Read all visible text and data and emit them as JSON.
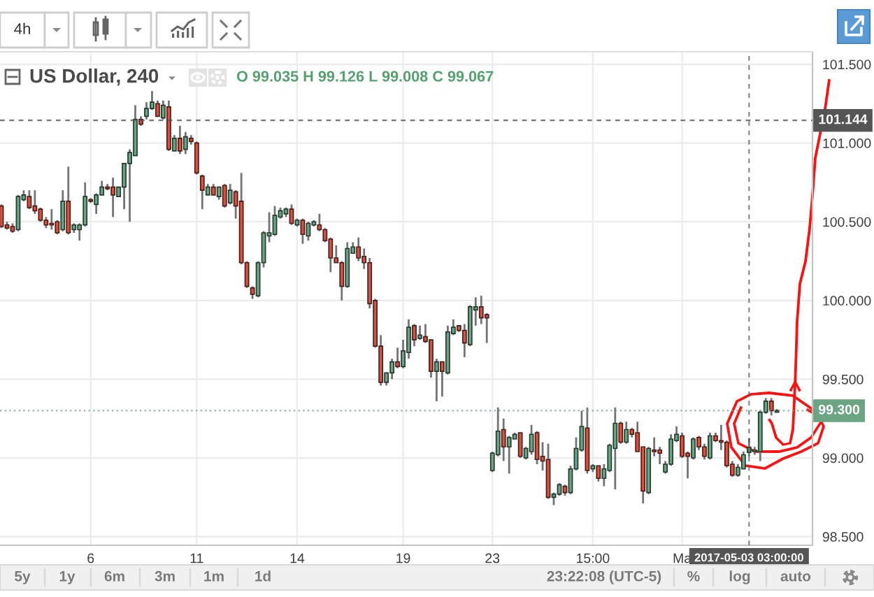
{
  "chart_data": {
    "type": "candlestick",
    "title": "US Dollar, 240",
    "subtitle": "O 99.035 H 99.126 L 99.008 C 99.067",
    "categories": [
      null,
      null,
      null,
      null,
      null,
      null,
      null,
      null,
      null,
      null,
      null,
      null,
      null,
      null,
      null,
      null,
      "6",
      null,
      null,
      null,
      null,
      null,
      null,
      null,
      null,
      null,
      null,
      null,
      null,
      null,
      null,
      null,
      null,
      null,
      null,
      "11",
      null,
      null,
      null,
      null,
      null,
      null,
      null,
      null,
      null,
      null,
      null,
      null,
      null,
      null,
      null,
      null,
      null,
      "14",
      null,
      null,
      null,
      null,
      null,
      null,
      null,
      null,
      null,
      null,
      null,
      null,
      null,
      null,
      null,
      null,
      null,
      null,
      "19",
      null,
      null,
      null,
      null,
      null,
      null,
      null,
      null,
      null,
      null,
      null,
      null,
      null,
      null,
      null,
      "23",
      null,
      null,
      null,
      null,
      null,
      null,
      null,
      null,
      null,
      null,
      null,
      null,
      null,
      null,
      null,
      null,
      null,
      "15:00",
      null,
      null,
      null,
      null,
      null,
      null,
      null,
      null,
      null,
      null,
      null,
      null,
      null,
      null,
      null,
      "Ma",
      null,
      null,
      null,
      null,
      null,
      null,
      null,
      null,
      null,
      null,
      null,
      "2017-05-03 03:00:00",
      null,
      null,
      null,
      null,
      null
    ],
    "ohlc": [
      [
        100.6,
        100.61,
        100.46,
        100.47
      ],
      [
        100.48,
        100.5,
        100.45,
        100.46
      ],
      [
        100.47,
        100.49,
        100.43,
        100.44
      ],
      [
        100.45,
        100.67,
        100.44,
        100.66
      ],
      [
        100.64,
        100.7,
        100.63,
        100.67
      ],
      [
        100.66,
        100.7,
        100.58,
        100.59
      ],
      [
        100.6,
        100.7,
        100.55,
        100.57
      ],
      [
        100.58,
        100.59,
        100.5,
        100.51
      ],
      [
        100.51,
        100.53,
        100.46,
        100.48
      ],
      [
        100.49,
        100.58,
        100.45,
        100.48
      ],
      [
        100.5,
        100.51,
        100.42,
        100.43
      ],
      [
        100.45,
        100.7,
        100.44,
        100.63
      ],
      [
        100.63,
        100.85,
        100.42,
        100.43
      ],
      [
        100.45,
        100.49,
        100.43,
        100.48
      ],
      [
        100.45,
        100.49,
        100.38,
        100.48
      ],
      [
        100.48,
        100.75,
        100.47,
        100.66
      ],
      [
        100.64,
        100.65,
        100.62,
        100.63
      ],
      [
        100.61,
        100.68,
        100.55,
        100.67
      ],
      [
        100.67,
        100.76,
        100.67,
        100.72
      ],
      [
        100.72,
        100.74,
        100.7,
        100.71
      ],
      [
        100.72,
        100.78,
        100.53,
        100.67
      ],
      [
        100.66,
        100.72,
        100.66,
        100.72
      ],
      [
        100.72,
        100.87,
        100.58,
        100.87
      ],
      [
        100.87,
        100.96,
        100.5,
        100.94
      ],
      [
        100.92,
        101.24,
        100.92,
        101.15
      ],
      [
        101.15,
        101.17,
        101.11,
        101.12
      ],
      [
        101.17,
        101.26,
        101.15,
        101.22
      ],
      [
        101.22,
        101.33,
        101.21,
        101.26
      ],
      [
        101.25,
        101.27,
        101.17,
        101.17
      ],
      [
        101.16,
        101.27,
        101.15,
        101.24
      ],
      [
        101.23,
        101.27,
        100.95,
        100.96
      ],
      [
        100.95,
        101.05,
        100.95,
        101.03
      ],
      [
        101.03,
        101.11,
        100.93,
        100.95
      ],
      [
        100.96,
        101.07,
        100.93,
        101.04
      ],
      [
        101.03,
        101.05,
        100.99,
        101.01
      ],
      [
        101.0,
        101.01,
        100.8,
        100.81
      ],
      [
        100.79,
        100.8,
        100.58,
        100.7
      ],
      [
        100.67,
        100.74,
        100.67,
        100.72
      ],
      [
        100.72,
        100.74,
        100.67,
        100.67
      ],
      [
        100.66,
        100.72,
        100.64,
        100.72
      ],
      [
        100.73,
        100.74,
        100.59,
        100.6
      ],
      [
        100.62,
        100.74,
        100.61,
        100.7
      ],
      [
        100.69,
        100.7,
        100.52,
        100.6
      ],
      [
        100.63,
        100.81,
        100.23,
        100.24
      ],
      [
        100.24,
        100.25,
        100.08,
        100.09
      ],
      [
        100.08,
        100.09,
        100.01,
        100.04
      ],
      [
        100.03,
        100.25,
        100.02,
        100.24
      ],
      [
        100.24,
        100.44,
        100.21,
        100.43
      ],
      [
        100.41,
        100.56,
        100.37,
        100.43
      ],
      [
        100.42,
        100.6,
        100.41,
        100.54
      ],
      [
        100.53,
        100.59,
        100.52,
        100.57
      ],
      [
        100.55,
        100.59,
        100.53,
        100.58
      ],
      [
        100.58,
        100.61,
        100.48,
        100.49
      ],
      [
        100.48,
        100.52,
        100.47,
        100.51
      ],
      [
        100.51,
        100.52,
        100.36,
        100.42
      ],
      [
        100.41,
        100.5,
        100.38,
        100.49
      ],
      [
        100.48,
        100.51,
        100.47,
        100.5
      ],
      [
        100.48,
        100.55,
        100.44,
        100.45
      ],
      [
        100.45,
        100.46,
        100.37,
        100.38
      ],
      [
        100.39,
        100.4,
        100.18,
        100.27
      ],
      [
        100.27,
        100.35,
        100.24,
        100.24
      ],
      [
        100.24,
        100.25,
        100.0,
        100.09
      ],
      [
        100.09,
        100.37,
        100.08,
        100.33
      ],
      [
        100.3,
        100.37,
        100.3,
        100.34
      ],
      [
        100.34,
        100.4,
        100.25,
        100.27
      ],
      [
        100.28,
        100.33,
        100.2,
        100.24
      ],
      [
        100.24,
        100.27,
        99.95,
        99.98
      ],
      [
        100.0,
        100.01,
        99.7,
        99.71
      ],
      [
        99.71,
        99.78,
        99.46,
        99.48
      ],
      [
        99.48,
        99.54,
        99.46,
        99.54
      ],
      [
        99.54,
        99.63,
        99.5,
        99.61
      ],
      [
        99.61,
        99.7,
        99.57,
        99.58
      ],
      [
        99.58,
        99.75,
        99.57,
        99.68
      ],
      [
        99.67,
        99.88,
        99.63,
        99.83
      ],
      [
        99.84,
        99.85,
        99.71,
        99.75
      ],
      [
        99.76,
        99.84,
        99.75,
        99.78
      ],
      [
        99.77,
        99.85,
        99.73,
        99.74
      ],
      [
        99.75,
        99.75,
        99.51,
        99.55
      ],
      [
        99.55,
        99.63,
        99.36,
        99.61
      ],
      [
        99.61,
        99.61,
        99.39,
        99.55
      ],
      [
        99.54,
        99.84,
        99.53,
        99.8
      ],
      [
        99.79,
        99.88,
        99.78,
        99.83
      ],
      [
        99.84,
        99.84,
        99.8,
        99.81
      ],
      [
        99.81,
        99.85,
        99.64,
        99.73
      ],
      [
        99.72,
        99.97,
        99.71,
        99.96
      ],
      [
        99.94,
        100.02,
        99.84,
        99.96
      ],
      [
        99.96,
        100.03,
        99.85,
        99.89
      ],
      [
        99.91,
        99.92,
        99.73,
        99.89
      ],
      [
        98.92,
        99.04,
        98.91,
        99.03
      ],
      [
        99.02,
        99.32,
        99.01,
        99.17
      ],
      [
        99.18,
        99.25,
        98.98,
        99.07
      ],
      [
        99.07,
        99.14,
        98.9,
        99.13
      ],
      [
        99.12,
        99.16,
        99.12,
        99.15
      ],
      [
        99.16,
        99.16,
        99.0,
        99.01
      ],
      [
        99.0,
        99.07,
        98.99,
        99.06
      ],
      [
        99.04,
        99.21,
        99.02,
        99.15
      ],
      [
        99.16,
        99.17,
        98.96,
        98.99
      ],
      [
        99.01,
        99.1,
        98.92,
        98.98
      ],
      [
        98.99,
        99.09,
        98.74,
        98.75
      ],
      [
        98.75,
        98.78,
        98.7,
        98.77
      ],
      [
        98.77,
        98.84,
        98.76,
        98.83
      ],
      [
        98.82,
        98.83,
        98.76,
        98.78
      ],
      [
        98.78,
        98.95,
        98.77,
        98.93
      ],
      [
        98.93,
        99.13,
        98.92,
        99.06
      ],
      [
        99.05,
        99.3,
        99.04,
        99.2
      ],
      [
        99.19,
        99.32,
        98.9,
        98.92
      ],
      [
        98.93,
        98.96,
        98.91,
        98.95
      ],
      [
        98.95,
        98.95,
        98.85,
        98.87
      ],
      [
        98.87,
        98.96,
        98.82,
        98.93
      ],
      [
        98.92,
        99.09,
        98.91,
        99.08
      ],
      [
        99.06,
        99.32,
        98.8,
        99.22
      ],
      [
        99.22,
        99.23,
        99.09,
        99.1
      ],
      [
        99.1,
        99.23,
        99.09,
        99.18
      ],
      [
        99.18,
        99.19,
        99.13,
        99.15
      ],
      [
        99.16,
        99.23,
        99.04,
        99.04
      ],
      [
        99.07,
        99.07,
        98.71,
        98.79
      ],
      [
        98.78,
        99.07,
        98.77,
        99.06
      ],
      [
        99.05,
        99.13,
        99.01,
        99.04
      ],
      [
        99.05,
        99.07,
        98.96,
        99.03
      ],
      [
        98.91,
        98.98,
        98.9,
        98.96
      ],
      [
        98.96,
        99.15,
        98.95,
        99.12
      ],
      [
        99.11,
        99.2,
        99.1,
        99.15
      ],
      [
        99.14,
        99.16,
        99.0,
        99.01
      ],
      [
        99.03,
        99.04,
        98.87,
        99.01
      ],
      [
        99.0,
        99.13,
        98.99,
        99.12
      ],
      [
        99.13,
        99.14,
        99.05,
        99.07
      ],
      [
        99.07,
        99.09,
        98.99,
        99.01
      ],
      [
        99.0,
        99.16,
        98.99,
        99.14
      ],
      [
        99.14,
        99.16,
        99.1,
        99.11
      ],
      [
        99.11,
        99.21,
        99.05,
        99.1
      ],
      [
        99.1,
        99.11,
        98.94,
        98.95
      ],
      [
        98.96,
        98.98,
        98.88,
        98.89
      ],
      [
        98.89,
        98.96,
        98.88,
        98.94
      ],
      [
        98.93,
        99.04,
        98.93,
        99.02
      ],
      [
        99.035,
        99.126,
        99.008,
        99.067
      ],
      [
        99.04,
        99.07,
        99.02,
        99.05
      ],
      [
        99.04,
        99.3,
        98.98,
        99.29
      ],
      [
        99.29,
        99.38,
        99.28,
        99.36
      ],
      [
        99.36,
        99.38,
        99.27,
        99.3
      ],
      [
        99.29,
        99.31,
        99.29,
        99.3
      ]
    ],
    "colors": [
      "#d75442",
      "#d75442",
      "#d75442",
      "#6ba583",
      "#6ba583",
      "#d75442",
      "#d75442",
      "#d75442",
      "#d75442",
      "#d75442",
      "#d75442",
      "#6ba583",
      "#d75442",
      "#6ba583",
      "#6ba583",
      "#6ba583",
      "#d75442",
      "#6ba583",
      "#6ba583",
      "#d75442",
      "#d75442",
      "#6ba583",
      "#6ba583",
      "#6ba583",
      "#6ba583",
      "#d75442",
      "#6ba583",
      "#6ba583",
      "#d75442",
      "#6ba583",
      "#d75442",
      "#6ba583",
      "#d75442",
      "#6ba583",
      "#d75442",
      "#d75442",
      "#d75442",
      "#6ba583",
      "#d75442",
      "#6ba583",
      "#d75442",
      "#6ba583",
      "#d75442",
      "#d75442",
      "#d75442",
      "#d75442",
      "#6ba583",
      "#6ba583",
      "#6ba583",
      "#6ba583",
      "#6ba583",
      "#6ba583",
      "#d75442",
      "#6ba583",
      "#d75442",
      "#6ba583",
      "#6ba583",
      "#d75442",
      "#d75442",
      "#d75442",
      "#d75442",
      "#d75442",
      "#6ba583",
      "#6ba583",
      "#d75442",
      "#d75442",
      "#d75442",
      "#d75442",
      "#d75442",
      "#6ba583",
      "#6ba583",
      "#d75442",
      "#6ba583",
      "#6ba583",
      "#d75442",
      "#6ba583",
      "#d75442",
      "#d75442",
      "#6ba583",
      "#d75442",
      "#6ba583",
      "#6ba583",
      "#d75442",
      "#d75442",
      "#6ba583",
      "#6ba583",
      "#d75442",
      "#d75442",
      "#6ba583",
      "#6ba583",
      "#d75442",
      "#6ba583",
      "#6ba583",
      "#d75442",
      "#6ba583",
      "#6ba583",
      "#d75442",
      "#d75442",
      "#d75442",
      "#6ba583",
      "#6ba583",
      "#d75442",
      "#6ba583",
      "#6ba583",
      "#6ba583",
      "#d75442",
      "#6ba583",
      "#d75442",
      "#6ba583",
      "#6ba583",
      "#6ba583",
      "#d75442",
      "#6ba583",
      "#d75442",
      "#d75442",
      "#d75442",
      "#6ba583",
      "#d75442",
      "#d75442",
      "#6ba583",
      "#6ba583",
      "#6ba583",
      "#d75442",
      "#d75442",
      "#6ba583",
      "#d75442",
      "#d75442",
      "#6ba583",
      "#d75442",
      "#d75442",
      "#d75442",
      "#d75442",
      "#6ba583",
      "#6ba583",
      "#6ba583",
      "#6ba583",
      "#6ba583",
      "#6ba583",
      "#d75442",
      "#6ba583"
    ],
    "ylim": [
      98.445,
      101.58
    ],
    "yticks": [
      {
        "value": 101.5,
        "label": "101.500"
      },
      {
        "value": 101.0,
        "label": "101.000"
      },
      {
        "value": 100.5,
        "label": "100.500"
      },
      {
        "value": 100.0,
        "label": "100.000"
      },
      {
        "value": 99.5,
        "label": "99.500"
      },
      {
        "value": 99.0,
        "label": "99.000"
      },
      {
        "value": 98.5,
        "label": "98.500"
      }
    ],
    "grid": true,
    "ref_lines": [
      {
        "axis": "x",
        "value": "2017-05-03 03:00:00",
        "color": "#555555",
        "line_style": "dashed"
      },
      {
        "axis": "y",
        "value": 101.144,
        "label": "101.144",
        "color": "#555555",
        "line_style": "dashed"
      },
      {
        "axis": "y",
        "value": 99.3,
        "label": "99.300",
        "color": "#6ba583",
        "line_style": "dotted"
      }
    ],
    "annotations": [
      "4h",
      "5y",
      "1y",
      "6m",
      "3m",
      "1m",
      "1d",
      "23:22:08 (UTC-5)",
      "%",
      "log",
      "auto"
    ]
  }
}
